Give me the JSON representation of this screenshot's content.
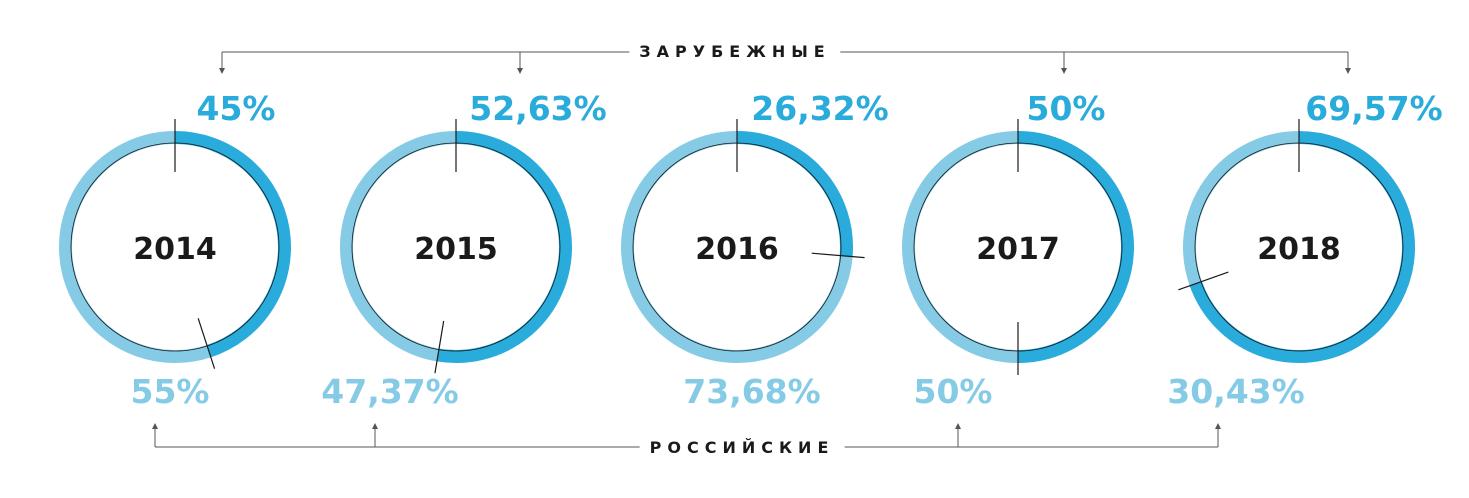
{
  "labels": {
    "top": "ЗАРУБЕЖНЫЕ",
    "bottom": "РОССИЙСКИЕ"
  },
  "colors": {
    "foreign": "#29ABDB",
    "domestic": "#86CBE6",
    "text": "#1a1a1a"
  },
  "chart_data": {
    "type": "pie",
    "series_names": [
      "ЗАРУБЕЖНЫЕ",
      "РОССИЙСКИЕ"
    ],
    "items": [
      {
        "year": "2014",
        "foreign": 45,
        "domestic": 55,
        "foreign_label": "45%",
        "domestic_label": "55%"
      },
      {
        "year": "2015",
        "foreign": 52.63,
        "domestic": 47.37,
        "foreign_label": "52,63%",
        "domestic_label": "47,37%"
      },
      {
        "year": "2016",
        "foreign": 26.32,
        "domestic": 73.68,
        "foreign_label": "26,32%",
        "domestic_label": "73,68%"
      },
      {
        "year": "2017",
        "foreign": 50,
        "domestic": 50,
        "foreign_label": "50%",
        "domestic_label": "50%"
      },
      {
        "year": "2018",
        "foreign": 69.57,
        "domestic": 30.43,
        "foreign_label": "69,57%",
        "domestic_label": "30,43%"
      }
    ]
  }
}
